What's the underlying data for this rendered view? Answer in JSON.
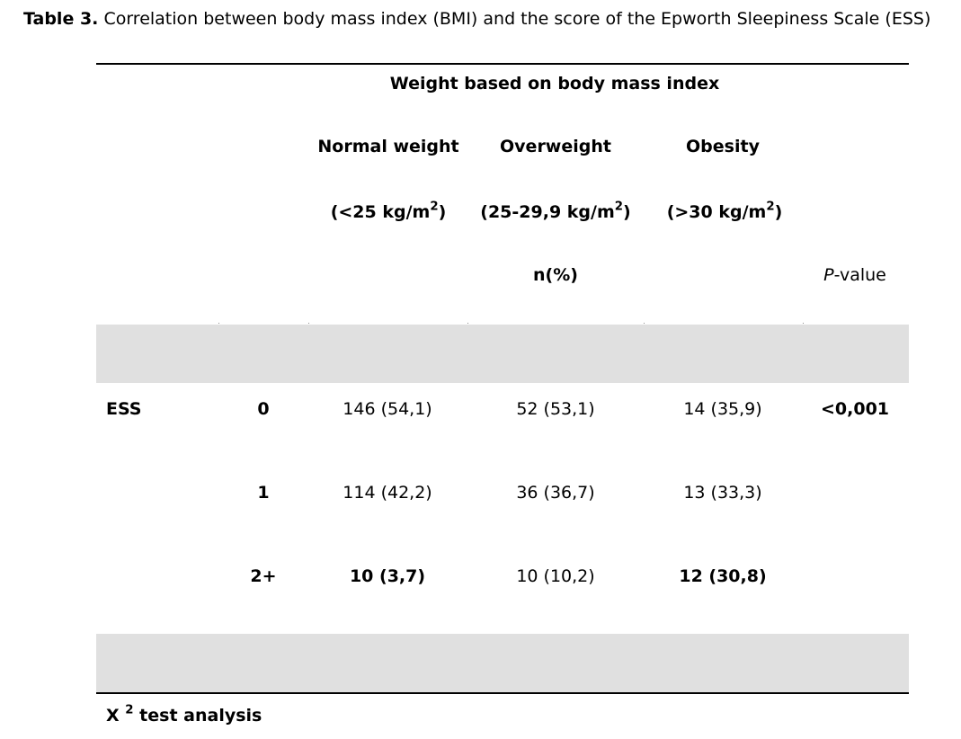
{
  "caption": {
    "label": "Table 3.",
    "text": "Correlation between body mass index (BMI) and the score of the Epworth Sleepiness Scale (ESS)"
  },
  "header": {
    "group_title": "Weight  based on body mass index",
    "columns": [
      {
        "name": "Normal weight",
        "range_prefix": "(<25 kg/m",
        "range_sup": "2",
        "range_suffix": ")"
      },
      {
        "name": "Overweight",
        "range_prefix": "(25-29,9 kg/m",
        "range_sup": "2",
        "range_suffix": ")"
      },
      {
        "name": "Obesity",
        "range_prefix": "(>30 kg/m",
        "range_sup": "2",
        "range_suffix": ")"
      }
    ],
    "unit": "n(%)",
    "pvalue_italic": "P",
    "pvalue_rest": "-value"
  },
  "rows": [
    {
      "label": "ESS",
      "level": "0",
      "normal": "146 (54,1)",
      "overweight": "52 (53,1)",
      "obesity": "14 (35,9)",
      "pvalue": "<0,001"
    },
    {
      "label": "",
      "level": "1",
      "normal": "114 (42,2)",
      "overweight": "36 (36,7)",
      "obesity": "13 (33,3)",
      "pvalue": ""
    },
    {
      "label": "",
      "level": "2+",
      "normal": "10 (3,7)",
      "overweight": "10 (10,2)",
      "obesity": "12 (30,8)",
      "pvalue": ""
    }
  ],
  "footnote": {
    "symbol": "X",
    "sup": "2",
    "text": "test  analysis"
  }
}
